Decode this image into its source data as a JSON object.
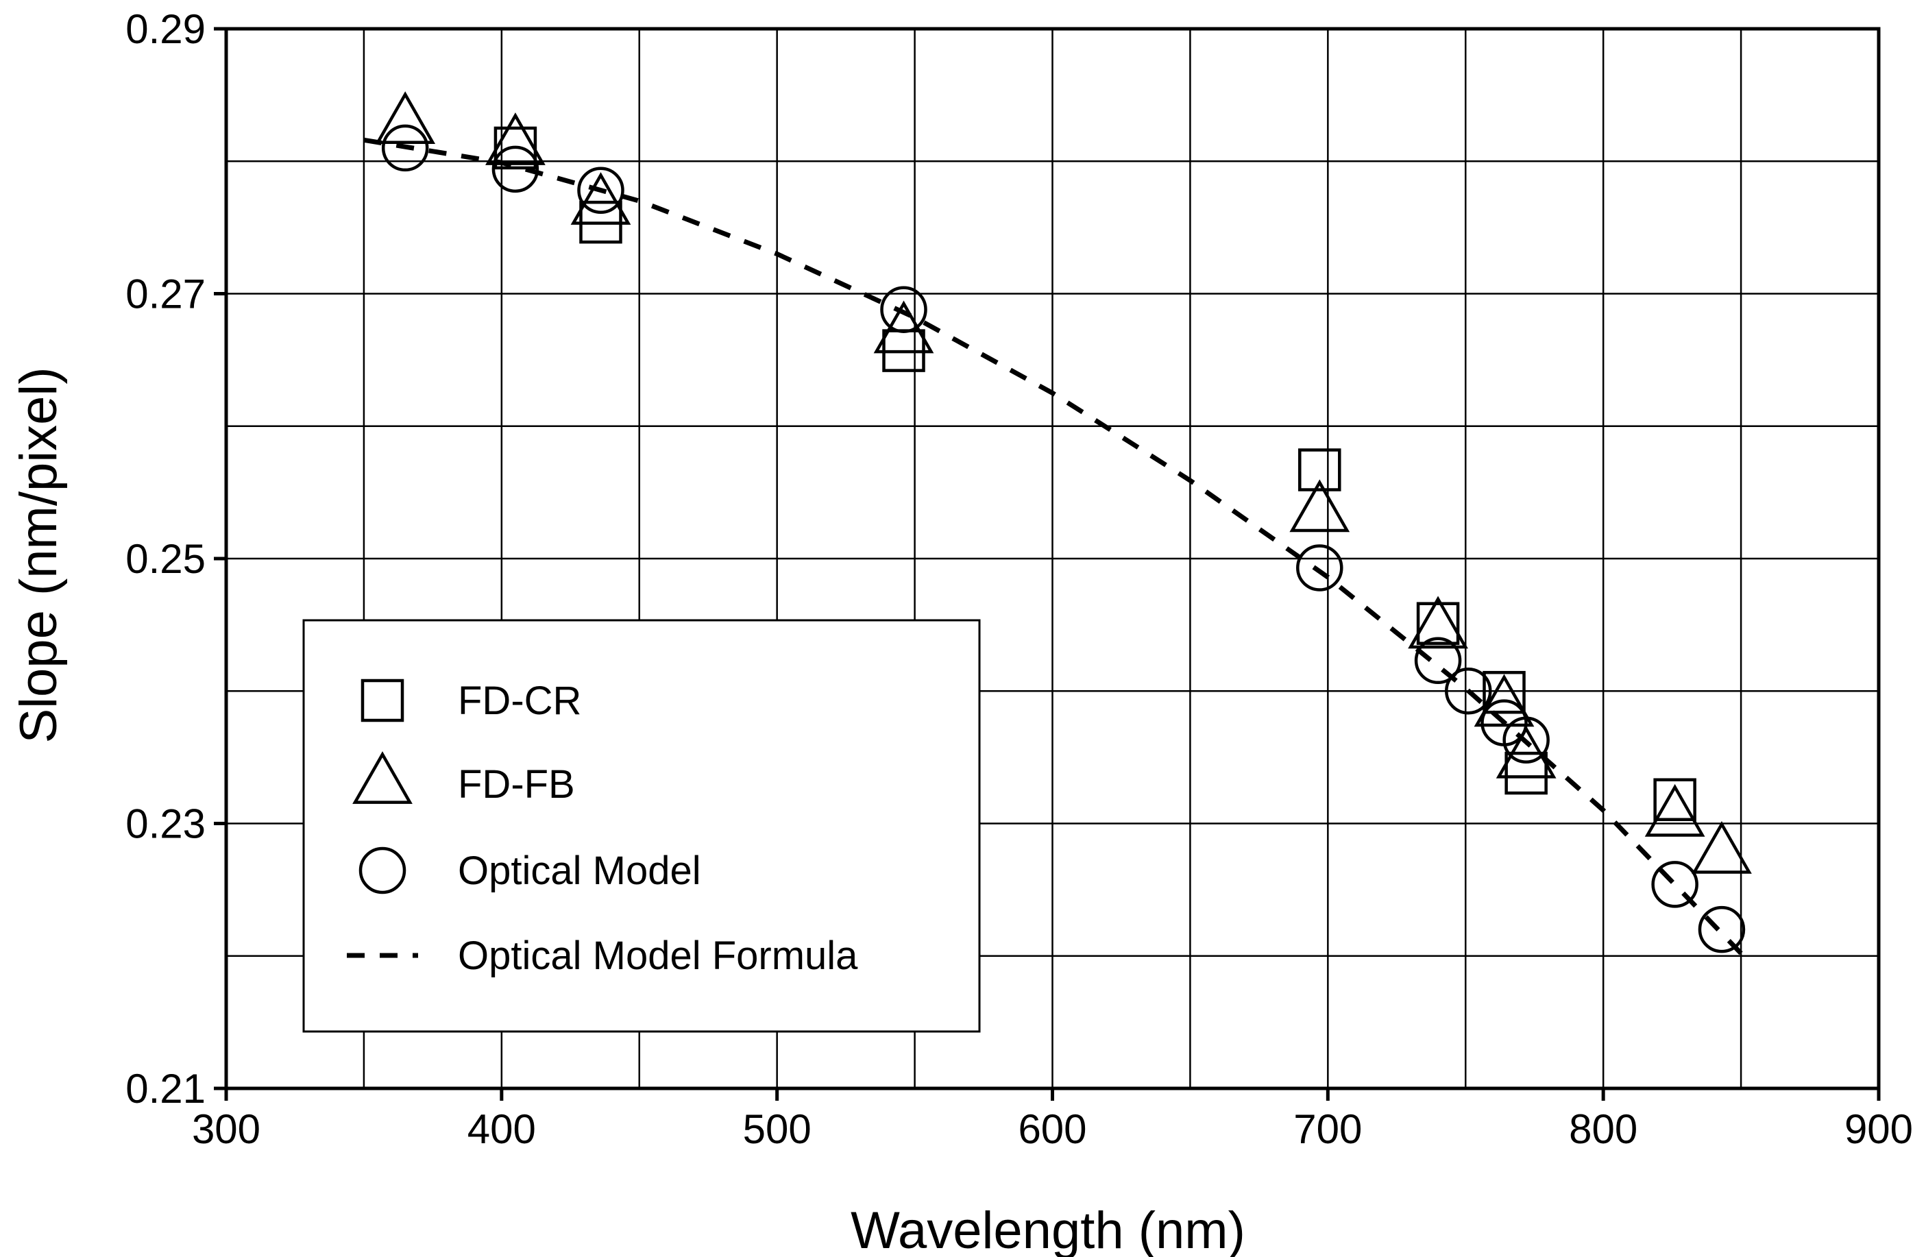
{
  "chart_data": {
    "type": "scatter",
    "xlabel": "Wavelength (nm)",
    "ylabel": "Slope (nm/pixel)",
    "xlim": [
      300,
      900
    ],
    "ylim": [
      0.21,
      0.29
    ],
    "xticks": [
      300,
      400,
      500,
      600,
      700,
      800,
      900
    ],
    "xtick_labels": [
      "300",
      "400",
      "500",
      "600",
      "700",
      "800",
      "900"
    ],
    "yticks": [
      0.21,
      0.23,
      0.25,
      0.27,
      0.29
    ],
    "ytick_labels": [
      "0.21",
      "0.23",
      "0.25",
      "0.27",
      "0.29"
    ],
    "x_grid": [
      350,
      400,
      450,
      500,
      550,
      600,
      650,
      700,
      750,
      800,
      850
    ],
    "y_grid": [
      0.22,
      0.23,
      0.24,
      0.25,
      0.26,
      0.27,
      0.28
    ],
    "grid": true,
    "legend_position": "lower-left",
    "series": [
      {
        "name": "FD-CR",
        "marker": "square",
        "points": [
          {
            "x": 405,
            "y": 0.281
          },
          {
            "x": 436,
            "y": 0.2754
          },
          {
            "x": 546,
            "y": 0.2657
          },
          {
            "x": 697,
            "y": 0.2567
          },
          {
            "x": 740,
            "y": 0.2451
          },
          {
            "x": 764,
            "y": 0.2399
          },
          {
            "x": 772,
            "y": 0.2338
          },
          {
            "x": 826,
            "y": 0.2318
          }
        ]
      },
      {
        "name": "FD-FB",
        "marker": "triangle",
        "points": [
          {
            "x": 365,
            "y": 0.2828
          },
          {
            "x": 405,
            "y": 0.2812
          },
          {
            "x": 436,
            "y": 0.2767
          },
          {
            "x": 546,
            "y": 0.267
          },
          {
            "x": 697,
            "y": 0.2535
          },
          {
            "x": 740,
            "y": 0.2447
          },
          {
            "x": 764,
            "y": 0.2388
          },
          {
            "x": 772,
            "y": 0.2349
          },
          {
            "x": 826,
            "y": 0.2305
          },
          {
            "x": 843,
            "y": 0.2277
          }
        ]
      },
      {
        "name": "Optical Model",
        "marker": "circle",
        "points": [
          {
            "x": 365,
            "y": 0.281
          },
          {
            "x": 405,
            "y": 0.2794
          },
          {
            "x": 436,
            "y": 0.2778
          },
          {
            "x": 546,
            "y": 0.2688
          },
          {
            "x": 697,
            "y": 0.2493
          },
          {
            "x": 740,
            "y": 0.2423
          },
          {
            "x": 751,
            "y": 0.24
          },
          {
            "x": 764,
            "y": 0.2376
          },
          {
            "x": 772,
            "y": 0.2363
          },
          {
            "x": 826,
            "y": 0.2254
          },
          {
            "x": 843,
            "y": 0.222
          }
        ]
      },
      {
        "name": "Optical Model Formula",
        "marker": "dashed-line",
        "points": [
          {
            "x": 350,
            "y": 0.2816
          },
          {
            "x": 400,
            "y": 0.2799
          },
          {
            "x": 450,
            "y": 0.277
          },
          {
            "x": 500,
            "y": 0.273
          },
          {
            "x": 550,
            "y": 0.2682
          },
          {
            "x": 600,
            "y": 0.2625
          },
          {
            "x": 650,
            "y": 0.2559
          },
          {
            "x": 700,
            "y": 0.2486
          },
          {
            "x": 750,
            "y": 0.2402
          },
          {
            "x": 800,
            "y": 0.231
          },
          {
            "x": 850,
            "y": 0.2202
          }
        ]
      }
    ]
  },
  "colors": {
    "axis": "#000000",
    "grid": "#000000",
    "marker_fill": "#ffffff",
    "background": "#ffffff"
  }
}
